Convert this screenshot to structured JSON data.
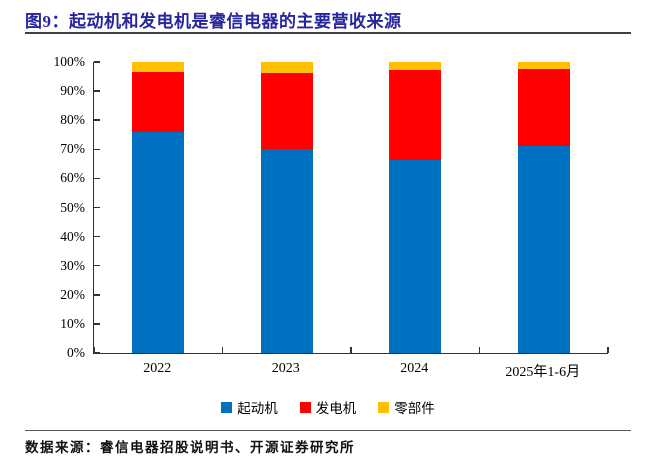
{
  "header": {
    "title": "图9：起动机和发电机是睿信电器的主要营收来源"
  },
  "footer": {
    "source": "数据来源：睿信电器招股说明书、开源证券研究所"
  },
  "colors": {
    "title_navy": "#27269E",
    "axis": "#333333",
    "starter_blue": "#0070C0",
    "generator_red": "#FF0000",
    "parts_yellow": "#FFC000"
  },
  "chart_data": {
    "type": "bar",
    "stacked": true,
    "percent_stacked": true,
    "title": "图9：起动机和发电机是睿信电器的主要营收来源",
    "categories": [
      "2022",
      "2023",
      "2024",
      "2025年1-6月"
    ],
    "series": [
      {
        "name": "起动机",
        "color": "#0070C0",
        "values": [
          75.9,
          70.0,
          66.3,
          71.0
        ]
      },
      {
        "name": "发电机",
        "color": "#FF0000",
        "values": [
          20.7,
          26.2,
          30.9,
          26.7
        ]
      },
      {
        "name": "零部件",
        "color": "#FFC000",
        "values": [
          3.4,
          3.8,
          2.8,
          2.3
        ]
      }
    ],
    "xlabel": "",
    "ylabel": "",
    "ylim": [
      0,
      100
    ],
    "ytick_step": 10,
    "ytick_suffix": "%",
    "grid": false,
    "legend_position": "bottom"
  }
}
